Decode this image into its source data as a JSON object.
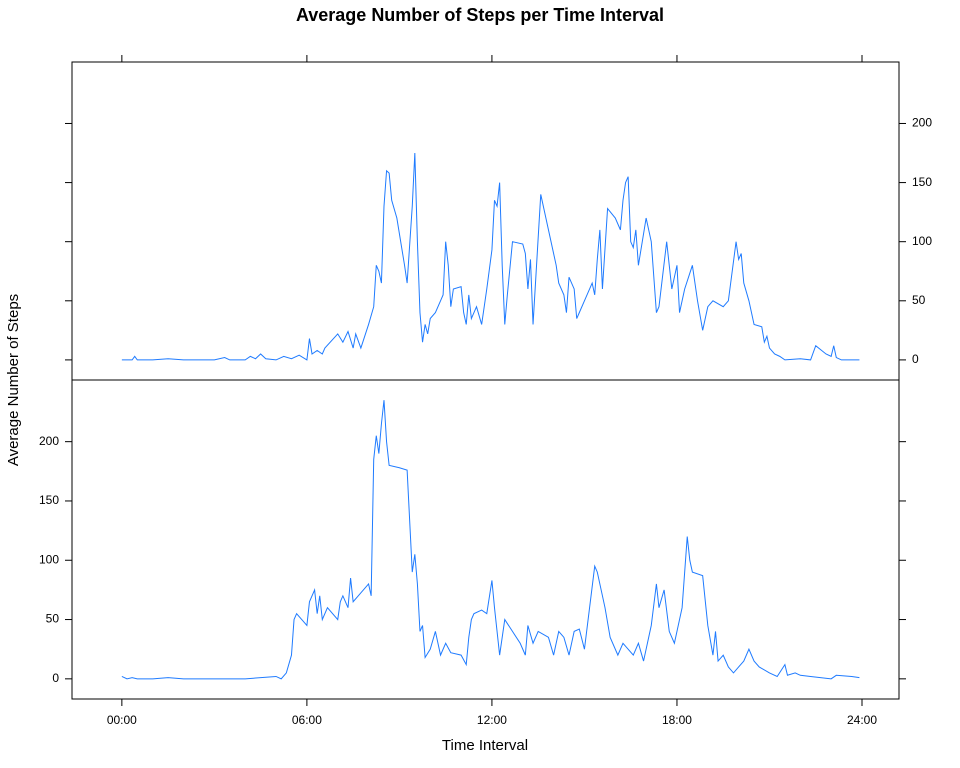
{
  "chart_data": {
    "type": "line",
    "title": "Average Number of Steps per Time Interval",
    "xlabel": "Time Interval",
    "ylabel": "Average Number of Steps",
    "color": "#1f7bff",
    "xlim": [
      -97,
      1512
    ],
    "xticks": [
      {
        "value": 0,
        "label": "00:00"
      },
      {
        "value": 360,
        "label": "06:00"
      },
      {
        "value": 720,
        "label": "12:00"
      },
      {
        "value": 1080,
        "label": "18:00"
      },
      {
        "value": 1440,
        "label": "24:00"
      }
    ],
    "ylim": [
      -17,
      252
    ],
    "yticks": [
      0,
      50,
      100,
      150,
      200
    ],
    "panels": [
      {
        "x": [
          0,
          20,
          25,
          30,
          60,
          90,
          120,
          180,
          200,
          210,
          240,
          250,
          260,
          270,
          280,
          300,
          315,
          330,
          345,
          360,
          365,
          370,
          380,
          390,
          395,
          420,
          430,
          440,
          450,
          455,
          465,
          480,
          490,
          495,
          500,
          505,
          510,
          515,
          520,
          525,
          535,
          550,
          555,
          565,
          570,
          575,
          580,
          585,
          590,
          595,
          600,
          610,
          620,
          625,
          630,
          635,
          640,
          645,
          660,
          665,
          670,
          675,
          680,
          690,
          700,
          710,
          720,
          725,
          730,
          735,
          740,
          745,
          750,
          760,
          780,
          785,
          790,
          795,
          800,
          815,
          830,
          840,
          845,
          850,
          860,
          865,
          870,
          880,
          885,
          890,
          900,
          915,
          920,
          925,
          930,
          935,
          945,
          960,
          970,
          975,
          980,
          985,
          990,
          995,
          1000,
          1005,
          1020,
          1030,
          1040,
          1045,
          1060,
          1070,
          1080,
          1085,
          1095,
          1110,
          1120,
          1130,
          1140,
          1150,
          1170,
          1180,
          1195,
          1200,
          1205,
          1210,
          1220,
          1230,
          1245,
          1250,
          1255,
          1260,
          1270,
          1280,
          1290,
          1320,
          1340,
          1350,
          1370,
          1380,
          1385,
          1390,
          1400,
          1435
        ],
        "values": [
          0,
          0,
          3,
          0,
          0,
          1,
          0,
          0,
          2,
          0,
          0,
          3,
          1,
          5,
          1,
          0,
          3,
          1,
          4,
          0,
          18,
          5,
          8,
          5,
          10,
          22,
          15,
          24,
          10,
          22,
          10,
          30,
          45,
          80,
          75,
          65,
          130,
          160,
          158,
          135,
          120,
          80,
          65,
          130,
          175,
          100,
          40,
          15,
          30,
          22,
          35,
          40,
          50,
          55,
          100,
          80,
          45,
          60,
          62,
          40,
          30,
          55,
          35,
          45,
          30,
          60,
          93,
          135,
          130,
          150,
          80,
          30,
          55,
          100,
          98,
          90,
          60,
          85,
          30,
          140,
          110,
          90,
          80,
          65,
          55,
          40,
          70,
          60,
          35,
          40,
          50,
          65,
          55,
          85,
          110,
          60,
          128,
          120,
          110,
          135,
          150,
          155,
          100,
          95,
          110,
          80,
          120,
          100,
          40,
          45,
          100,
          60,
          80,
          40,
          60,
          80,
          50,
          25,
          45,
          50,
          45,
          50,
          100,
          85,
          90,
          65,
          50,
          30,
          28,
          15,
          20,
          10,
          5,
          3,
          0,
          1,
          0,
          12,
          5,
          3,
          12,
          2,
          0,
          0
        ]
      },
      {
        "x": [
          0,
          10,
          20,
          30,
          60,
          90,
          120,
          180,
          240,
          300,
          310,
          320,
          330,
          335,
          340,
          350,
          360,
          365,
          375,
          380,
          385,
          390,
          400,
          420,
          425,
          430,
          440,
          445,
          450,
          460,
          480,
          485,
          490,
          495,
          500,
          505,
          510,
          515,
          520,
          540,
          555,
          565,
          570,
          575,
          580,
          585,
          590,
          600,
          610,
          615,
          620,
          630,
          640,
          660,
          670,
          675,
          680,
          685,
          700,
          710,
          720,
          725,
          735,
          745,
          760,
          775,
          785,
          790,
          800,
          810,
          830,
          840,
          850,
          860,
          870,
          880,
          890,
          900,
          920,
          925,
          935,
          940,
          950,
          965,
          975,
          985,
          995,
          1005,
          1015,
          1030,
          1040,
          1045,
          1055,
          1065,
          1075,
          1090,
          1100,
          1105,
          1110,
          1130,
          1140,
          1150,
          1155,
          1160,
          1170,
          1180,
          1190,
          1200,
          1210,
          1220,
          1230,
          1240,
          1260,
          1275,
          1290,
          1295,
          1310,
          1320,
          1340,
          1380,
          1390,
          1420,
          1435
        ],
        "values": [
          2,
          0,
          1,
          0,
          0,
          1,
          0,
          0,
          0,
          2,
          0,
          5,
          20,
          50,
          55,
          50,
          45,
          65,
          75,
          55,
          70,
          50,
          60,
          50,
          65,
          70,
          60,
          85,
          65,
          70,
          80,
          70,
          185,
          205,
          190,
          215,
          235,
          200,
          180,
          178,
          176,
          90,
          105,
          80,
          40,
          45,
          18,
          25,
          40,
          30,
          20,
          30,
          22,
          20,
          12,
          35,
          50,
          55,
          58,
          55,
          83,
          60,
          20,
          50,
          40,
          30,
          20,
          45,
          30,
          40,
          35,
          20,
          40,
          35,
          20,
          40,
          42,
          25,
          95,
          90,
          70,
          60,
          35,
          20,
          30,
          25,
          20,
          30,
          15,
          45,
          80,
          60,
          75,
          40,
          30,
          60,
          120,
          100,
          90,
          87,
          45,
          20,
          40,
          15,
          20,
          10,
          5,
          10,
          15,
          25,
          15,
          10,
          5,
          2,
          12,
          3,
          5,
          3,
          2,
          0,
          3,
          2,
          1
        ]
      }
    ]
  }
}
